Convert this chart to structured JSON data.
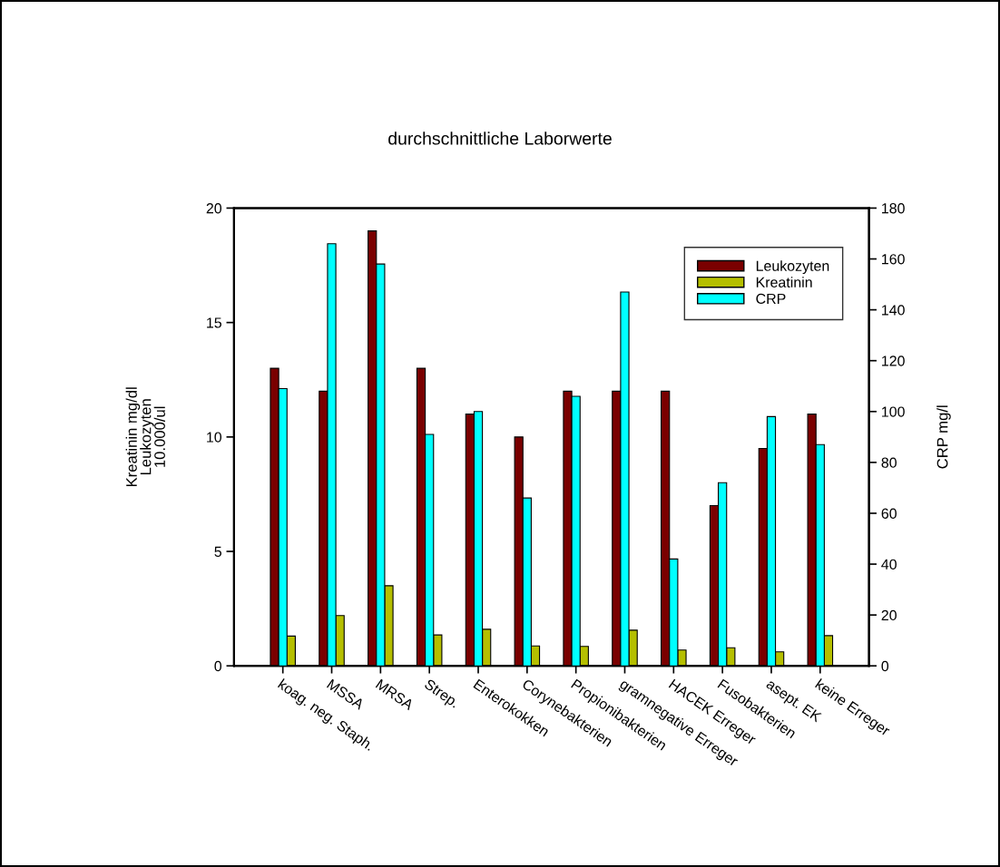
{
  "chart_data": {
    "type": "bar",
    "title": "durchschnittliche Laborwerte",
    "ylabel": "Kreatinin mg/dl\nLeukozyten\n10.000/ul",
    "y2label": "CRP mg/l",
    "categories": [
      "koag. neg. Staph.",
      "MSSA",
      "MRSA",
      "Strep.",
      "Enterokokken",
      "Corynebakterien",
      "Propionibakterien",
      "gramnegative Erreger",
      "HACEK Erreger",
      "Fusobakterien",
      "asept. EK",
      "keine Erreger"
    ],
    "series": [
      {
        "name": "Leukozyten",
        "color": "#7a0000",
        "values": [
          13,
          12,
          19,
          13,
          11,
          10,
          12,
          12,
          12,
          7,
          9.5,
          11
        ]
      },
      {
        "name": "CRP",
        "color": "#00ffff",
        "axis": "y2",
        "values": [
          109,
          166,
          158,
          91,
          100,
          66,
          106,
          147,
          42,
          72,
          98,
          87
        ]
      },
      {
        "name": "Kreatinin",
        "color": "#b5bf00",
        "values": [
          1.3,
          2.2,
          3.5,
          1.35,
          1.6,
          0.87,
          0.85,
          1.56,
          0.69,
          0.79,
          0.61,
          1.32
        ]
      }
    ],
    "ylim": [
      0,
      20
    ],
    "yticks": [
      0,
      5,
      10,
      15,
      20
    ],
    "y2lim": [
      0,
      180
    ],
    "y2ticks": [
      0,
      20,
      40,
      60,
      80,
      100,
      120,
      140,
      160,
      180
    ],
    "legend": "top right",
    "grid": false
  }
}
